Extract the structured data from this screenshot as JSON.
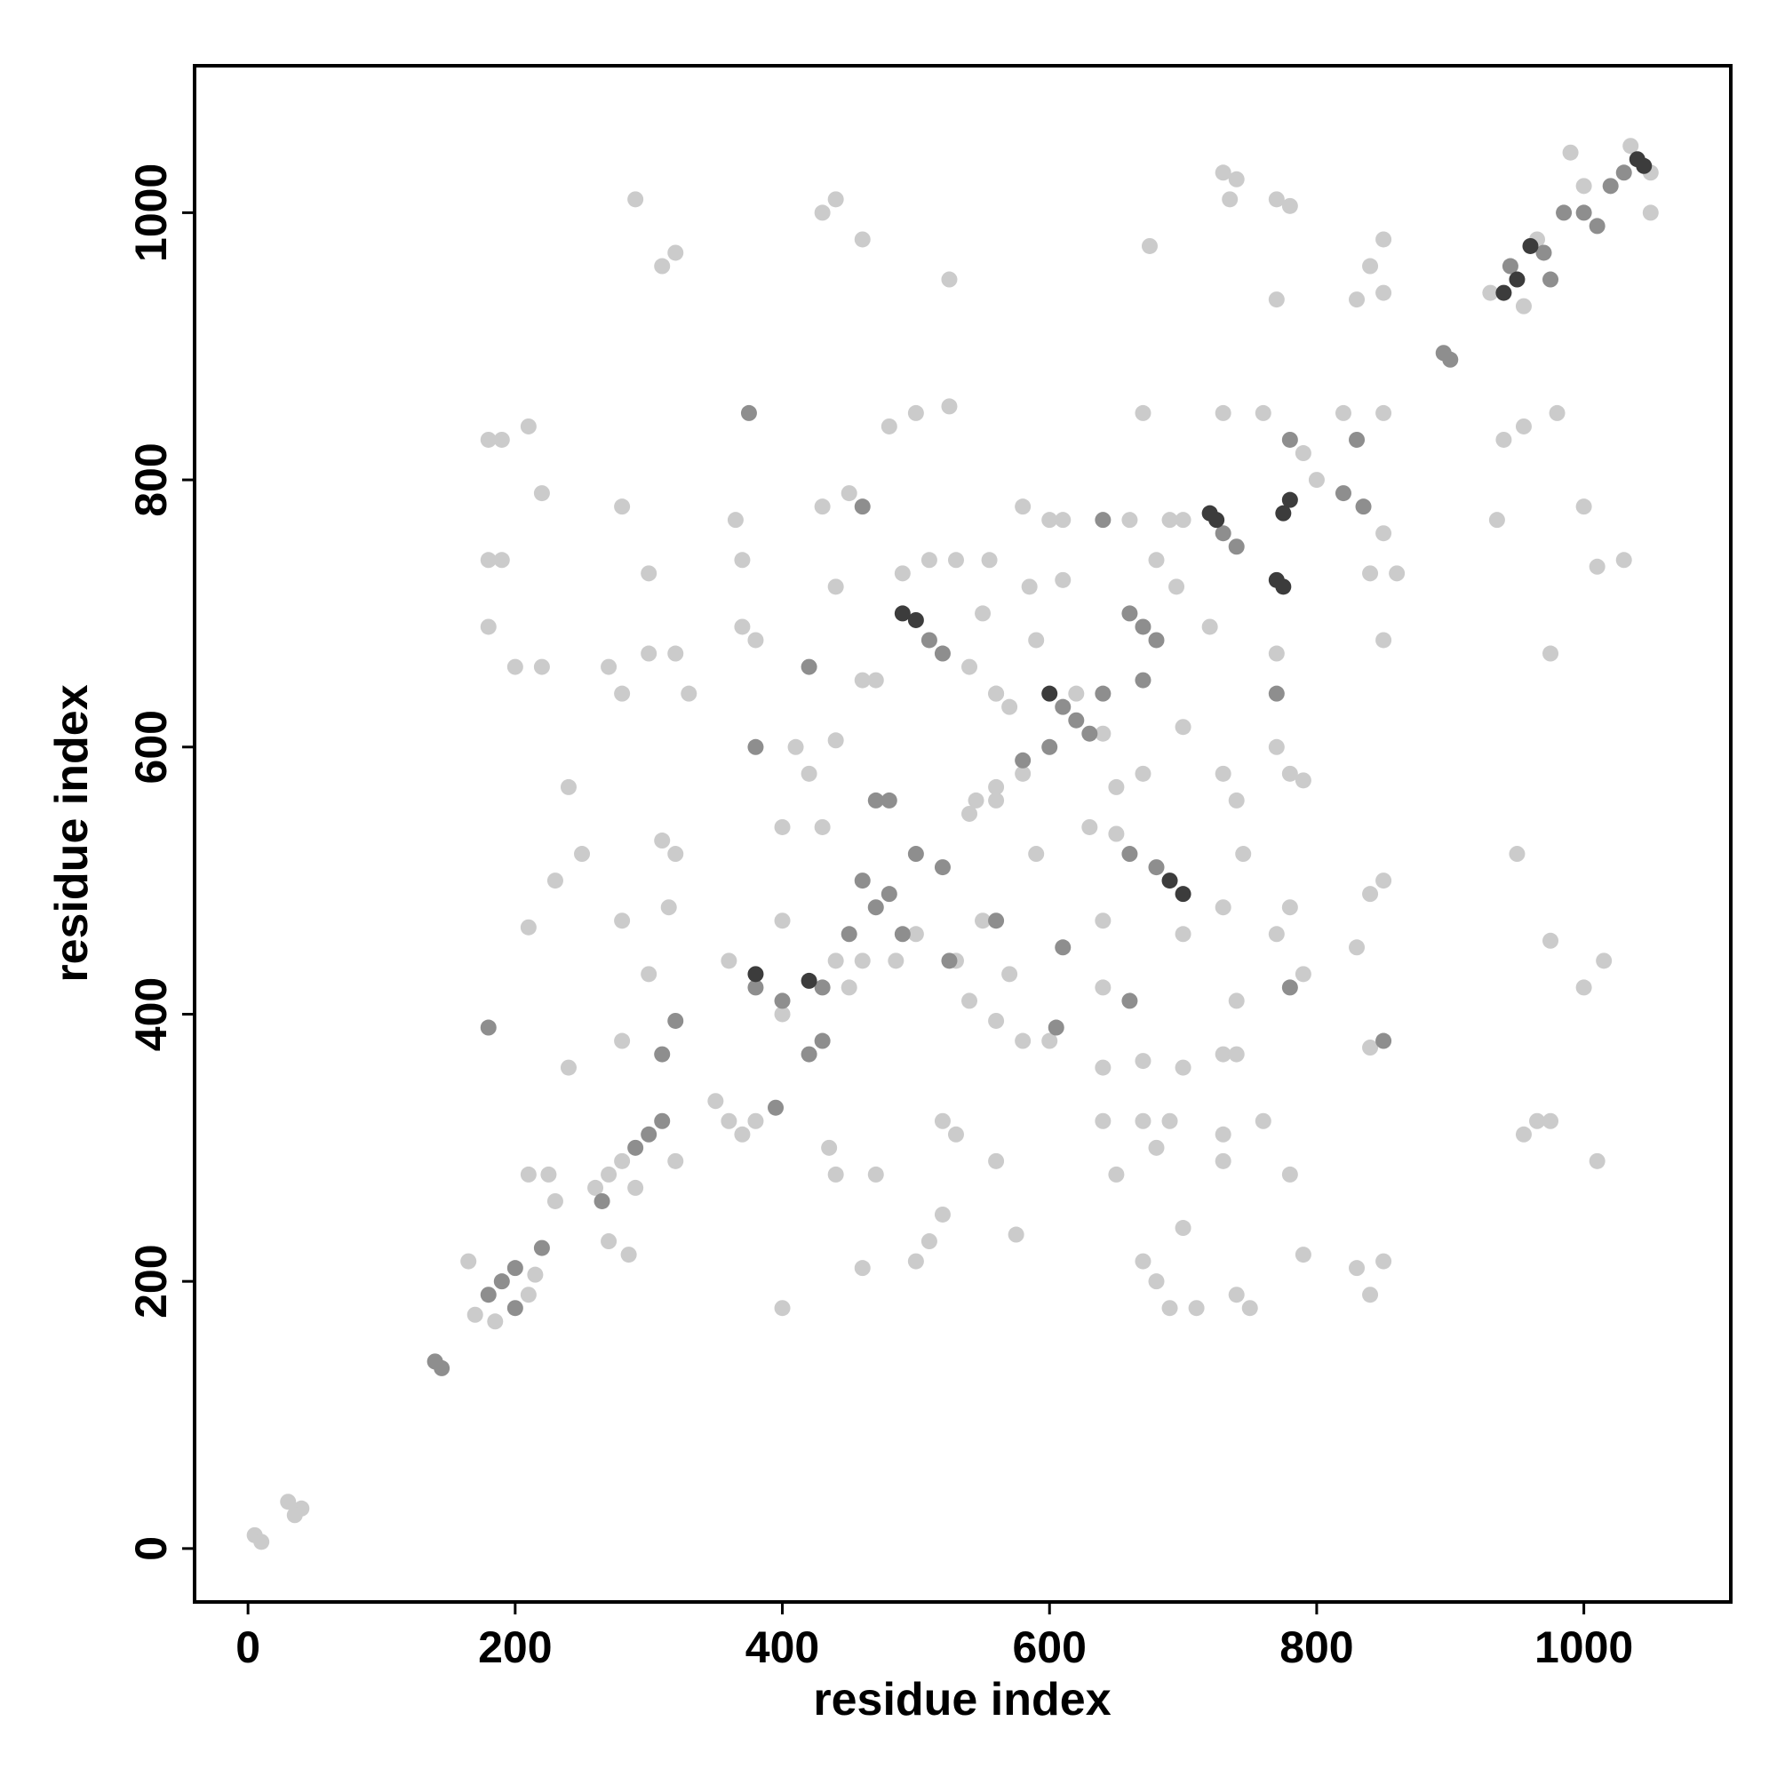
{
  "chart_data": {
    "type": "scatter",
    "x_label": "residue index",
    "y_label": "residue index",
    "xlim": [
      -40,
      1110
    ],
    "ylim": [
      -40,
      1110
    ],
    "xticks": [
      0,
      200,
      400,
      600,
      800,
      1000
    ],
    "yticks": [
      0,
      200,
      400,
      600,
      800,
      1000
    ],
    "series": [
      {
        "color": "#cbcbcb",
        "x": [
          5,
          10,
          30,
          40,
          35,
          170,
          185,
          210,
          215,
          165,
          230,
          210,
          225,
          260,
          270,
          280,
          320,
          290,
          285,
          270,
          360,
          380,
          370,
          240,
          240,
          230,
          210,
          250,
          280,
          280,
          300,
          315,
          310,
          320,
          270,
          280,
          300,
          320,
          330,
          300,
          280,
          180,
          190,
          210,
          220,
          180,
          190,
          180,
          200,
          220,
          290,
          310,
          320,
          430,
          440,
          460,
          525,
          400,
          440,
          540,
          560,
          580,
          370,
          380,
          370,
          365,
          430,
          450,
          460,
          440,
          490,
          480,
          500,
          525,
          510,
          530,
          555,
          580,
          600,
          610,
          660,
          670,
          730,
          760,
          790,
          800,
          850,
          820,
          840,
          850,
          830,
          850,
          850,
          860,
          840,
          850,
          850,
          840,
          830,
          840,
          830,
          840,
          850,
          780,
          790,
          770,
          780,
          790,
          770,
          770,
          700,
          695,
          720,
          670,
          700,
          730,
          730,
          740,
          745,
          740,
          730,
          740,
          750,
          740,
          710,
          690,
          680,
          670,
          680,
          670,
          690,
          640,
          650,
          670,
          700,
          730,
          730,
          700,
          760,
          780,
          790,
          600,
          580,
          560,
          570,
          550,
          530,
          520,
          530,
          510,
          500,
          520,
          460,
          440,
          470,
          435,
          400,
          560,
          575,
          640,
          640,
          630,
          650,
          640,
          650,
          590,
          560,
          590,
          570,
          560,
          540,
          550,
          585,
          610,
          680,
          690,
          700,
          540,
          545,
          930,
          965,
          990,
          1050,
          1035,
          1000,
          1050,
          955,
          940,
          955,
          980,
          935,
          1000,
          1010,
          1030,
          975,
          950,
          975,
          1000,
          1015,
          955,
          965,
          975,
          1010,
          730,
          740,
          735,
          770,
          780,
          770,
          675,
          410,
          440,
          360,
          350,
          460,
          450,
          500,
          485,
          560,
          470,
          420,
          400,
          430,
          400,
          640,
          620
        ],
        "y": [
          10,
          5,
          35,
          30,
          25,
          175,
          170,
          190,
          205,
          215,
          260,
          280,
          280,
          270,
          280,
          290,
          290,
          270,
          220,
          230,
          320,
          320,
          310,
          360,
          570,
          500,
          465,
          520,
          470,
          380,
          430,
          480,
          530,
          520,
          660,
          640,
          670,
          670,
          640,
          730,
          780,
          830,
          830,
          840,
          790,
          740,
          740,
          690,
          660,
          660,
          1010,
          960,
          970,
          1000,
          1010,
          980,
          950,
          400,
          440,
          550,
          560,
          580,
          690,
          680,
          740,
          770,
          780,
          790,
          650,
          720,
          730,
          840,
          850,
          855,
          740,
          740,
          740,
          780,
          770,
          725,
          770,
          850,
          850,
          850,
          820,
          800,
          850,
          850,
          960,
          980,
          935,
          940,
          760,
          730,
          730,
          680,
          500,
          490,
          450,
          375,
          210,
          190,
          215,
          480,
          430,
          460,
          580,
          575,
          600,
          670,
          770,
          720,
          690,
          580,
          460,
          480,
          580,
          560,
          520,
          410,
          370,
          370,
          180,
          190,
          180,
          180,
          200,
          215,
          300,
          320,
          320,
          320,
          280,
          365,
          360,
          310,
          290,
          240,
          320,
          280,
          220,
          380,
          380,
          395,
          430,
          470,
          440,
          320,
          310,
          230,
          215,
          250,
          210,
          280,
          280,
          300,
          180,
          290,
          235,
          420,
          360,
          540,
          570,
          470,
          535,
          520,
          570,
          680,
          630,
          640,
          660,
          700,
          720,
          770,
          740,
          770,
          615,
          410,
          560,
          940,
          980,
          1045,
          1000,
          1050,
          1020,
          1030,
          930,
          830,
          840,
          850,
          770,
          780,
          735,
          740,
          670,
          520,
          455,
          420,
          440,
          310,
          320,
          320,
          290,
          1030,
          1025,
          1010,
          1010,
          1005,
          935,
          975,
          600,
          605,
          440,
          335,
          440,
          420,
          460,
          440,
          640,
          650,
          580,
          540,
          540,
          470,
          610,
          640
        ]
      },
      {
        "color": "#8e8e8e",
        "x": [
          140,
          145,
          180,
          200,
          190,
          220,
          200,
          265,
          290,
          300,
          310,
          180,
          320,
          310,
          395,
          380,
          400,
          430,
          450,
          470,
          480,
          420,
          430,
          470,
          380,
          420,
          460,
          510,
          520,
          610,
          620,
          630,
          660,
          670,
          680,
          660,
          680,
          730,
          740,
          780,
          830,
          820,
          835,
          850,
          780,
          660,
          605,
          610,
          560,
          600,
          580,
          640,
          500,
          520,
          490,
          460,
          945,
          975,
          985,
          1010,
          1020,
          1030,
          1000,
          970,
          895,
          900,
          375,
          480,
          525,
          670,
          770,
          640
        ],
        "y": [
          140,
          135,
          190,
          210,
          200,
          225,
          180,
          260,
          300,
          310,
          320,
          390,
          395,
          370,
          330,
          420,
          410,
          420,
          460,
          480,
          490,
          370,
          380,
          560,
          600,
          660,
          780,
          680,
          670,
          630,
          620,
          610,
          700,
          690,
          680,
          520,
          510,
          760,
          750,
          830,
          830,
          790,
          780,
          380,
          420,
          410,
          390,
          450,
          470,
          600,
          590,
          640,
          520,
          510,
          460,
          500,
          960,
          950,
          1000,
          990,
          1020,
          1030,
          1000,
          970,
          895,
          890,
          850,
          560,
          440,
          650,
          640,
          770
        ]
      },
      {
        "color": "#3c3c3c",
        "x": [
          490,
          500,
          775,
          780,
          720,
          725,
          770,
          775,
          600,
          700,
          690,
          950,
          940,
          960,
          1040,
          1045,
          420,
          380
        ],
        "y": [
          700,
          695,
          775,
          785,
          775,
          770,
          725,
          720,
          640,
          490,
          500,
          950,
          940,
          975,
          1040,
          1035,
          425,
          430
        ]
      }
    ]
  }
}
